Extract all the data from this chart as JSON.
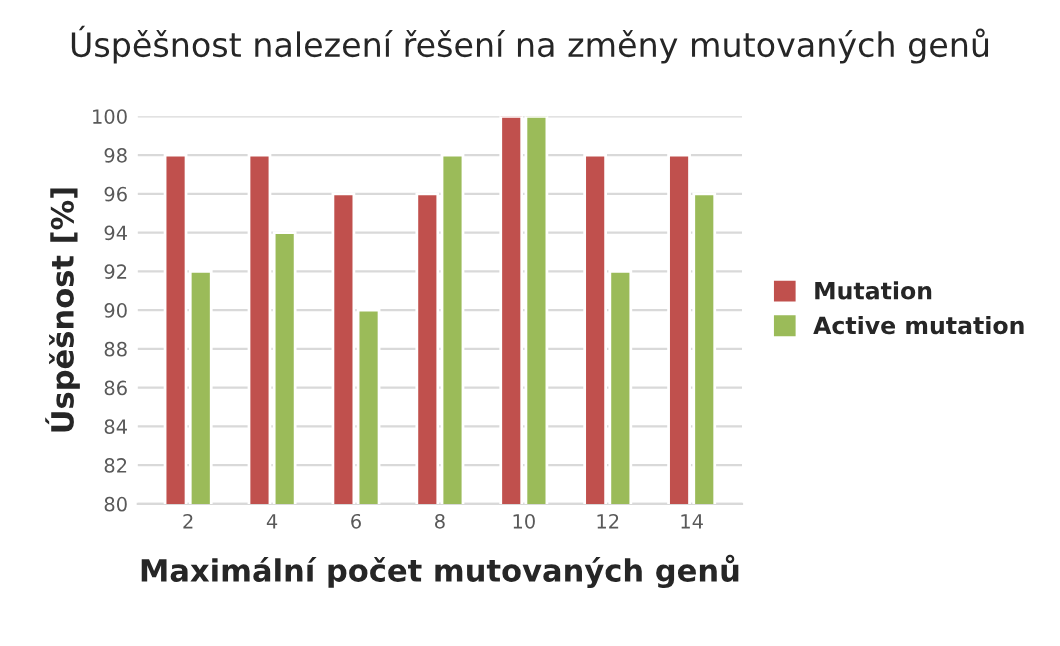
{
  "chart_data": {
    "type": "bar",
    "title": "Úspěšnost nalezení řešení na změny mutovaných genů",
    "xlabel": "Maximální počet mutovaných genů",
    "ylabel": "Úspěšnost [%]",
    "categories": [
      "2",
      "4",
      "6",
      "8",
      "10",
      "12",
      "14"
    ],
    "series": [
      {
        "name": "Mutation",
        "color": "#c0504d",
        "values": [
          98,
          98,
          96,
          96,
          100,
          98,
          98
        ]
      },
      {
        "name": "Active mutation",
        "color": "#9bbb59",
        "values": [
          92,
          94,
          90,
          98,
          100,
          92,
          96
        ]
      }
    ],
    "ylim": [
      80,
      100
    ],
    "yticks": [
      80,
      82,
      84,
      86,
      88,
      90,
      92,
      94,
      96,
      98,
      100
    ],
    "grid": "y",
    "legend": "right"
  }
}
